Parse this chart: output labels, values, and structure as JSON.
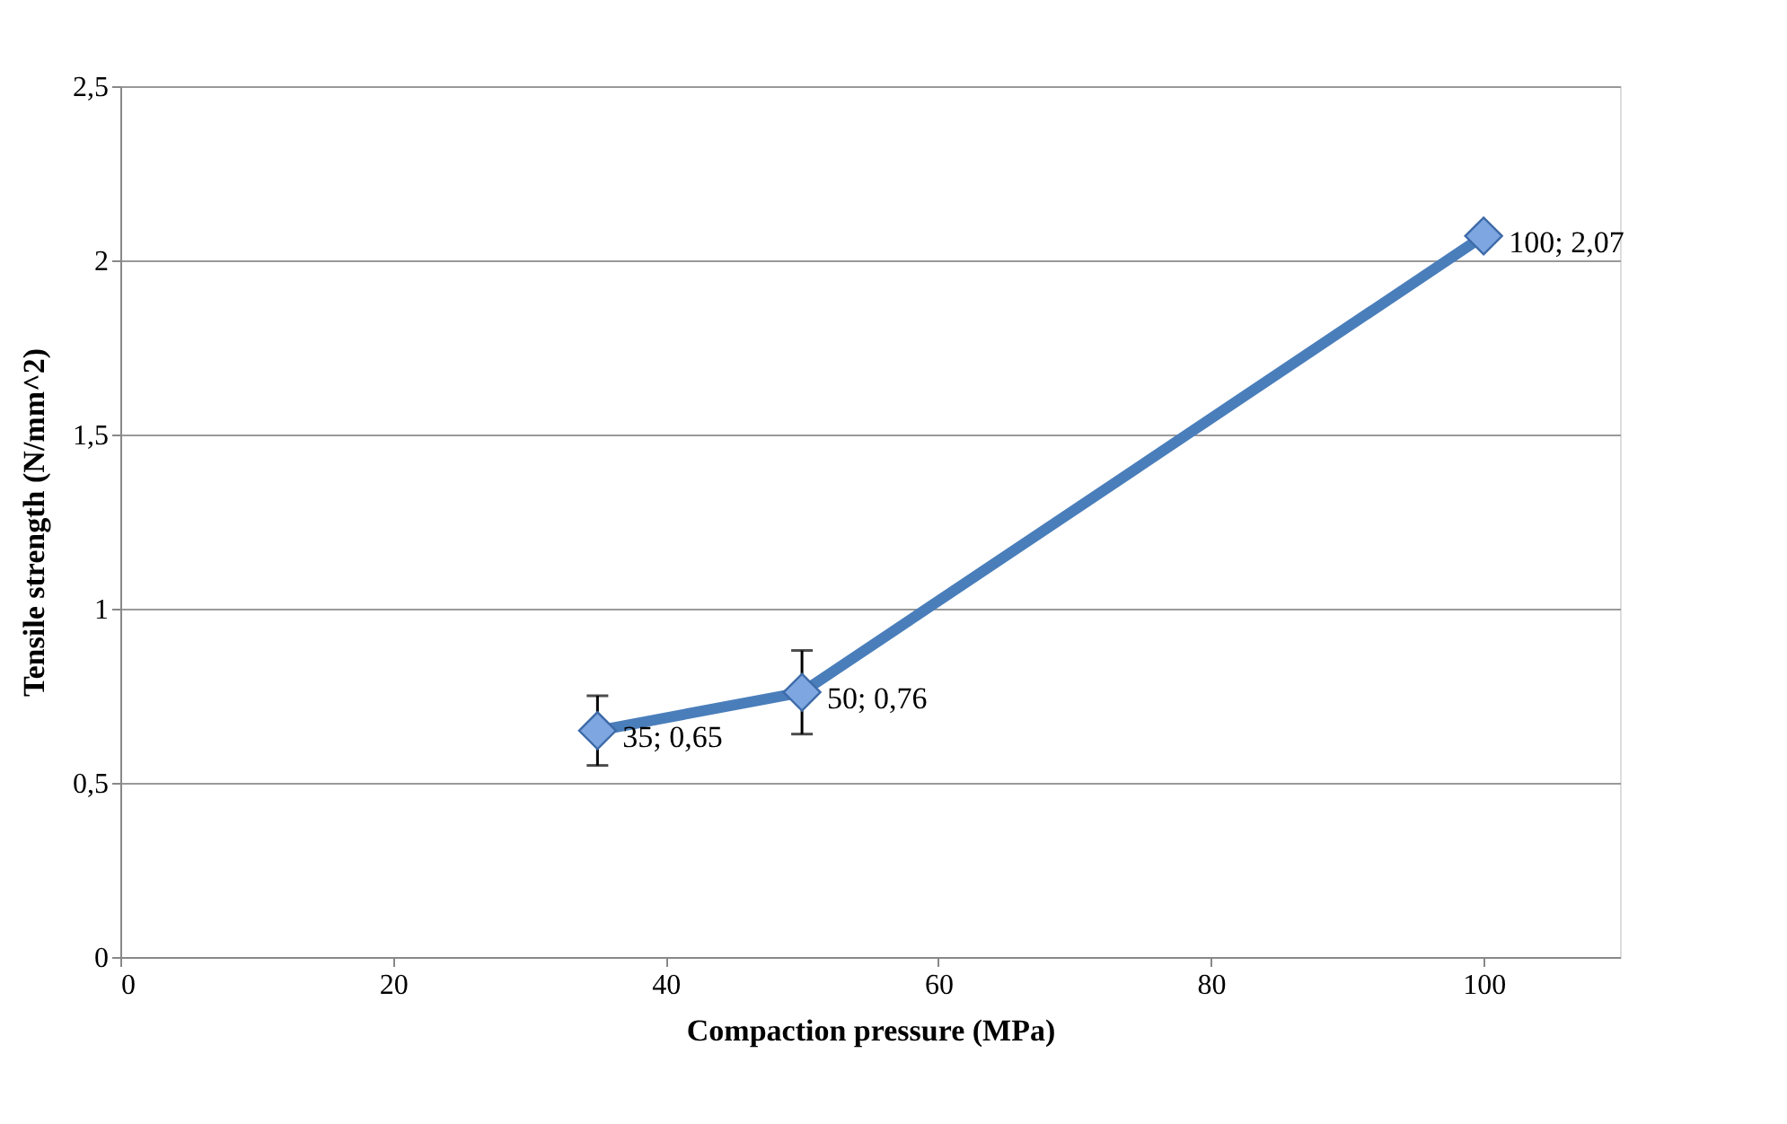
{
  "chart_data": {
    "type": "line",
    "xlabel": "Compaction pressure (MPa)",
    "ylabel": "Tensile strength (N/mm^2)",
    "x": [
      35,
      50,
      100
    ],
    "series": [
      {
        "color": "#4a7ebb",
        "values": [
          0.65,
          0.76,
          2.07
        ],
        "errors": [
          0.1,
          0.12,
          null
        ],
        "value_labels": [
          "35; 0,65",
          "50; 0,76",
          "100; 2,07"
        ]
      }
    ],
    "xlim": [
      0,
      110
    ],
    "xticks": [
      0,
      20,
      40,
      60,
      80,
      100
    ],
    "ylim": [
      0,
      2.5
    ],
    "yticks": [
      0,
      {
        "value": 0.5,
        "label": "0,5"
      },
      1,
      {
        "value": 1.5,
        "label": "1,5"
      },
      2,
      {
        "value": 2.5,
        "label": "2,5"
      }
    ],
    "grid": "y",
    "marker": "diamond",
    "line_style": "solid"
  }
}
